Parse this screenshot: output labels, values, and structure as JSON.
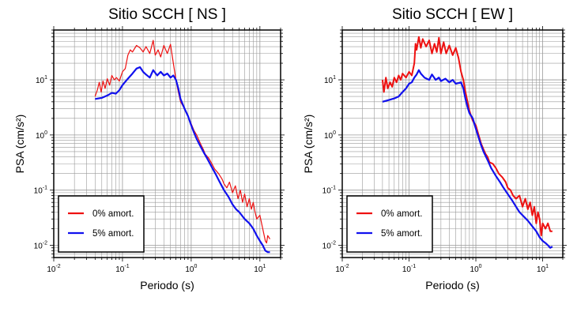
{
  "chart_data": [
    {
      "type": "line",
      "title": "Sitio SCCH [ NS ]",
      "xlabel": "Periodo (s)",
      "ylabel": "PSA (cm/s²)",
      "xscale": "log",
      "yscale": "log",
      "xlim": [
        0.01,
        20
      ],
      "ylim": [
        0.006,
        80
      ],
      "grid": true,
      "legend_position": "bottom-left",
      "xticks": [
        {
          "base": "10",
          "exp": "-2"
        },
        {
          "base": "10",
          "exp": "-1"
        },
        {
          "base": "10",
          "exp": "0"
        },
        {
          "base": "10",
          "exp": "1"
        }
      ],
      "yticks": [
        {
          "base": "10",
          "exp": "-2"
        },
        {
          "base": "10",
          "exp": "-1"
        },
        {
          "base": "10",
          "exp": "0"
        },
        {
          "base": "10",
          "exp": "1"
        }
      ],
      "series": [
        {
          "name": "0% amort.",
          "color": "#ee1111",
          "width": 1.2,
          "points": [
            [
              0.04,
              5.0
            ],
            [
              0.043,
              6.5
            ],
            [
              0.046,
              9.0
            ],
            [
              0.049,
              6.0
            ],
            [
              0.052,
              9.5
            ],
            [
              0.056,
              7.0
            ],
            [
              0.06,
              10.5
            ],
            [
              0.065,
              8.0
            ],
            [
              0.07,
              12.0
            ],
            [
              0.076,
              10.0
            ],
            [
              0.082,
              11.0
            ],
            [
              0.09,
              9.5
            ],
            [
              0.1,
              14.0
            ],
            [
              0.11,
              16.0
            ],
            [
              0.12,
              28.0
            ],
            [
              0.13,
              35.0
            ],
            [
              0.14,
              32.0
            ],
            [
              0.16,
              42.0
            ],
            [
              0.18,
              38.0
            ],
            [
              0.2,
              32.0
            ],
            [
              0.22,
              40.0
            ],
            [
              0.25,
              30.0
            ],
            [
              0.28,
              52.0
            ],
            [
              0.3,
              28.0
            ],
            [
              0.33,
              35.0
            ],
            [
              0.36,
              26.0
            ],
            [
              0.4,
              42.0
            ],
            [
              0.45,
              30.0
            ],
            [
              0.5,
              44.0
            ],
            [
              0.55,
              20.0
            ],
            [
              0.6,
              10.0
            ],
            [
              0.65,
              6.0
            ],
            [
              0.7,
              4.0
            ],
            [
              0.8,
              3.0
            ],
            [
              0.9,
              2.2
            ],
            [
              1.0,
              1.6
            ],
            [
              1.1,
              1.2
            ],
            [
              1.2,
              1.0
            ],
            [
              1.3,
              0.8
            ],
            [
              1.4,
              0.65
            ],
            [
              1.5,
              0.55
            ],
            [
              1.6,
              0.45
            ],
            [
              1.8,
              0.38
            ],
            [
              2.0,
              0.3
            ],
            [
              2.2,
              0.24
            ],
            [
              2.5,
              0.2
            ],
            [
              2.8,
              0.16
            ],
            [
              3.0,
              0.13
            ],
            [
              3.3,
              0.11
            ],
            [
              3.6,
              0.14
            ],
            [
              4.0,
              0.09
            ],
            [
              4.4,
              0.12
            ],
            [
              4.8,
              0.07
            ],
            [
              5.2,
              0.1
            ],
            [
              5.6,
              0.06
            ],
            [
              6.0,
              0.085
            ],
            [
              6.5,
              0.05
            ],
            [
              7.0,
              0.07
            ],
            [
              7.5,
              0.045
            ],
            [
              8.0,
              0.06
            ],
            [
              8.5,
              0.04
            ],
            [
              9.0,
              0.03
            ],
            [
              10.0,
              0.035
            ],
            [
              11.0,
              0.02
            ],
            [
              12.0,
              0.012
            ],
            [
              12.5,
              0.011
            ],
            [
              13.0,
              0.015
            ],
            [
              14.0,
              0.013
            ]
          ]
        },
        {
          "name": "5% amort.",
          "color": "#1111ee",
          "width": 2.2,
          "points": [
            [
              0.04,
              4.5
            ],
            [
              0.05,
              4.7
            ],
            [
              0.06,
              5.2
            ],
            [
              0.07,
              5.8
            ],
            [
              0.08,
              5.6
            ],
            [
              0.09,
              6.5
            ],
            [
              0.1,
              8.0
            ],
            [
              0.12,
              10.5
            ],
            [
              0.14,
              13.0
            ],
            [
              0.16,
              16.0
            ],
            [
              0.18,
              17.0
            ],
            [
              0.2,
              14.0
            ],
            [
              0.22,
              12.5
            ],
            [
              0.25,
              11.0
            ],
            [
              0.28,
              15.0
            ],
            [
              0.32,
              12.0
            ],
            [
              0.36,
              14.0
            ],
            [
              0.4,
              12.0
            ],
            [
              0.45,
              13.0
            ],
            [
              0.5,
              11.0
            ],
            [
              0.55,
              12.0
            ],
            [
              0.6,
              10.0
            ],
            [
              0.65,
              7.0
            ],
            [
              0.7,
              4.5
            ],
            [
              0.8,
              3.0
            ],
            [
              0.9,
              2.2
            ],
            [
              1.0,
              1.5
            ],
            [
              1.1,
              1.1
            ],
            [
              1.2,
              0.85
            ],
            [
              1.3,
              0.7
            ],
            [
              1.5,
              0.5
            ],
            [
              1.7,
              0.38
            ],
            [
              2.0,
              0.26
            ],
            [
              2.3,
              0.19
            ],
            [
              2.6,
              0.14
            ],
            [
              3.0,
              0.1
            ],
            [
              3.5,
              0.075
            ],
            [
              4.0,
              0.055
            ],
            [
              4.5,
              0.045
            ],
            [
              5.0,
              0.04
            ],
            [
              6.0,
              0.03
            ],
            [
              7.0,
              0.025
            ],
            [
              8.0,
              0.02
            ],
            [
              9.0,
              0.015
            ],
            [
              10.0,
              0.012
            ],
            [
              11.0,
              0.01
            ],
            [
              12.0,
              0.008
            ],
            [
              13.0,
              0.0075
            ],
            [
              14.0,
              0.0075
            ]
          ]
        }
      ]
    },
    {
      "type": "line",
      "title": "Sitio SCCH [ EW ]",
      "xlabel": "Periodo (s)",
      "ylabel": "PSA (cm/s²)",
      "xscale": "log",
      "yscale": "log",
      "xlim": [
        0.01,
        20
      ],
      "ylim": [
        0.006,
        80
      ],
      "grid": true,
      "legend_position": "bottom-left",
      "xticks": [
        {
          "base": "10",
          "exp": "-2"
        },
        {
          "base": "10",
          "exp": "-1"
        },
        {
          "base": "10",
          "exp": "0"
        },
        {
          "base": "10",
          "exp": "1"
        }
      ],
      "yticks": [
        {
          "base": "10",
          "exp": "-2"
        },
        {
          "base": "10",
          "exp": "-1"
        },
        {
          "base": "10",
          "exp": "0"
        },
        {
          "base": "10",
          "exp": "1"
        }
      ],
      "series": [
        {
          "name": "0% amort.",
          "color": "#ee1111",
          "width": 2.0,
          "points": [
            [
              0.04,
              10.0
            ],
            [
              0.042,
              6.0
            ],
            [
              0.045,
              11.0
            ],
            [
              0.048,
              7.0
            ],
            [
              0.052,
              9.0
            ],
            [
              0.056,
              7.5
            ],
            [
              0.06,
              11.0
            ],
            [
              0.065,
              9.0
            ],
            [
              0.07,
              12.0
            ],
            [
              0.075,
              10.0
            ],
            [
              0.08,
              13.0
            ],
            [
              0.09,
              11.0
            ],
            [
              0.1,
              14.0
            ],
            [
              0.11,
              12.0
            ],
            [
              0.12,
              20.0
            ],
            [
              0.125,
              45.0
            ],
            [
              0.13,
              35.0
            ],
            [
              0.14,
              60.0
            ],
            [
              0.15,
              38.0
            ],
            [
              0.16,
              55.0
            ],
            [
              0.18,
              40.0
            ],
            [
              0.2,
              52.0
            ],
            [
              0.22,
              30.0
            ],
            [
              0.24,
              45.0
            ],
            [
              0.26,
              32.0
            ],
            [
              0.28,
              58.0
            ],
            [
              0.3,
              30.0
            ],
            [
              0.33,
              48.0
            ],
            [
              0.36,
              30.0
            ],
            [
              0.4,
              42.0
            ],
            [
              0.45,
              28.0
            ],
            [
              0.5,
              38.0
            ],
            [
              0.55,
              25.0
            ],
            [
              0.6,
              14.0
            ],
            [
              0.65,
              10.0
            ],
            [
              0.7,
              6.0
            ],
            [
              0.75,
              4.0
            ],
            [
              0.8,
              2.8
            ],
            [
              0.85,
              2.2
            ],
            [
              0.9,
              1.8
            ],
            [
              1.0,
              1.5
            ],
            [
              1.1,
              1.0
            ],
            [
              1.2,
              0.7
            ],
            [
              1.3,
              0.55
            ],
            [
              1.4,
              0.45
            ],
            [
              1.5,
              0.4
            ],
            [
              1.6,
              0.32
            ],
            [
              1.8,
              0.3
            ],
            [
              2.0,
              0.25
            ],
            [
              2.2,
              0.2
            ],
            [
              2.5,
              0.17
            ],
            [
              2.8,
              0.14
            ],
            [
              3.0,
              0.11
            ],
            [
              3.3,
              0.1
            ],
            [
              3.6,
              0.08
            ],
            [
              4.0,
              0.07
            ],
            [
              4.5,
              0.08
            ],
            [
              5.0,
              0.05
            ],
            [
              5.5,
              0.07
            ],
            [
              6.0,
              0.045
            ],
            [
              6.5,
              0.06
            ],
            [
              7.0,
              0.035
            ],
            [
              7.5,
              0.05
            ],
            [
              8.0,
              0.025
            ],
            [
              8.5,
              0.04
            ],
            [
              9.0,
              0.03
            ],
            [
              9.5,
              0.015
            ],
            [
              10.0,
              0.025
            ],
            [
              11.0,
              0.02
            ],
            [
              12.0,
              0.025
            ],
            [
              13.0,
              0.018
            ],
            [
              14.0,
              0.018
            ]
          ]
        },
        {
          "name": "5% amort.",
          "color": "#1111ee",
          "width": 2.2,
          "points": [
            [
              0.04,
              4.0
            ],
            [
              0.05,
              4.3
            ],
            [
              0.06,
              4.6
            ],
            [
              0.07,
              5.0
            ],
            [
              0.08,
              6.0
            ],
            [
              0.09,
              7.0
            ],
            [
              0.1,
              8.5
            ],
            [
              0.11,
              9.0
            ],
            [
              0.12,
              11.0
            ],
            [
              0.13,
              12.5
            ],
            [
              0.14,
              15.0
            ],
            [
              0.15,
              13.0
            ],
            [
              0.17,
              11.0
            ],
            [
              0.2,
              10.0
            ],
            [
              0.22,
              12.5
            ],
            [
              0.25,
              10.0
            ],
            [
              0.28,
              11.0
            ],
            [
              0.3,
              9.5
            ],
            [
              0.35,
              10.5
            ],
            [
              0.4,
              9.0
            ],
            [
              0.45,
              10.0
            ],
            [
              0.5,
              8.5
            ],
            [
              0.6,
              9.0
            ],
            [
              0.65,
              7.0
            ],
            [
              0.7,
              4.5
            ],
            [
              0.75,
              3.2
            ],
            [
              0.8,
              2.5
            ],
            [
              0.9,
              2.0
            ],
            [
              1.0,
              1.3
            ],
            [
              1.1,
              0.9
            ],
            [
              1.2,
              0.65
            ],
            [
              1.3,
              0.5
            ],
            [
              1.5,
              0.35
            ],
            [
              1.7,
              0.25
            ],
            [
              2.0,
              0.18
            ],
            [
              2.3,
              0.14
            ],
            [
              2.6,
              0.11
            ],
            [
              3.0,
              0.085
            ],
            [
              3.5,
              0.065
            ],
            [
              4.0,
              0.05
            ],
            [
              4.5,
              0.04
            ],
            [
              5.0,
              0.035
            ],
            [
              6.0,
              0.028
            ],
            [
              7.0,
              0.022
            ],
            [
              8.0,
              0.018
            ],
            [
              9.0,
              0.014
            ],
            [
              10.0,
              0.012
            ],
            [
              11.0,
              0.011
            ],
            [
              12.0,
              0.01
            ],
            [
              13.0,
              0.009
            ],
            [
              14.0,
              0.0095
            ]
          ]
        }
      ]
    }
  ]
}
